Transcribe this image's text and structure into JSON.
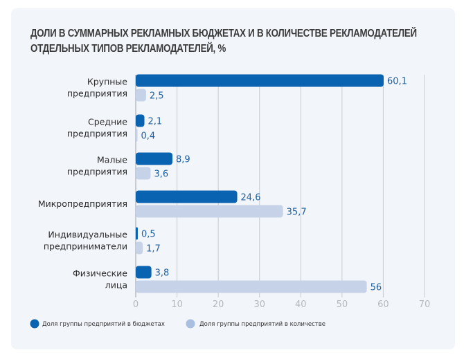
{
  "chart_data": {
    "type": "bar",
    "orientation": "horizontal",
    "title": "ДОЛИ В СУММАРНЫХ РЕКЛАМНЫХ БЮДЖЕТАХ И В КОЛИЧЕСТВЕ РЕКЛАМОДАТЕЛЕЙ ОТДЕЛЬНЫХ ТИПОВ РЕКЛАМОДАТЕЛЕЙ, %",
    "title_lines": [
      "ДОЛИ В СУММАРНЫХ РЕКЛАМНЫХ БЮДЖЕТАХ И В КОЛИЧЕСТВЕ РЕКЛАМОДАТЕЛЕЙ",
      "ОТДЕЛЬНЫХ ТИПОВ РЕКЛАМОДАТЕЛЕЙ, %"
    ],
    "categories": [
      [
        "Крупные",
        "предприятия"
      ],
      [
        "Средние",
        "предприятия"
      ],
      [
        "Малые",
        "предприятия"
      ],
      [
        "Микропредприятия"
      ],
      [
        "Индивидуальные",
        "предприниматели"
      ],
      [
        "Физические",
        "лица"
      ]
    ],
    "series": [
      {
        "name": "Доля группы предприятий в бюджетах",
        "color": "#0a63b0",
        "values": [
          60.1,
          2.1,
          8.9,
          24.6,
          0.5,
          3.8
        ],
        "labels": [
          "60,1",
          "2,1",
          "8,9",
          "24,6",
          "0,5",
          "3,8"
        ]
      },
      {
        "name": "Доля группы предприятий в количестве",
        "color": "#c5d2e8",
        "values": [
          2.5,
          0.4,
          3.6,
          35.7,
          1.7,
          56
        ],
        "labels": [
          "2,5",
          "0,4",
          "3,6",
          "35,7",
          "1,7",
          "56"
        ]
      }
    ],
    "xlim": [
      0,
      70
    ],
    "xticks": [
      0,
      10,
      20,
      30,
      40,
      50,
      60,
      70
    ],
    "xlabel": "",
    "ylabel": "",
    "grid": "vertical",
    "legend_position": "bottom-left",
    "legend_marker_colors": [
      "#0a63b0",
      "#a9bfe0"
    ]
  }
}
